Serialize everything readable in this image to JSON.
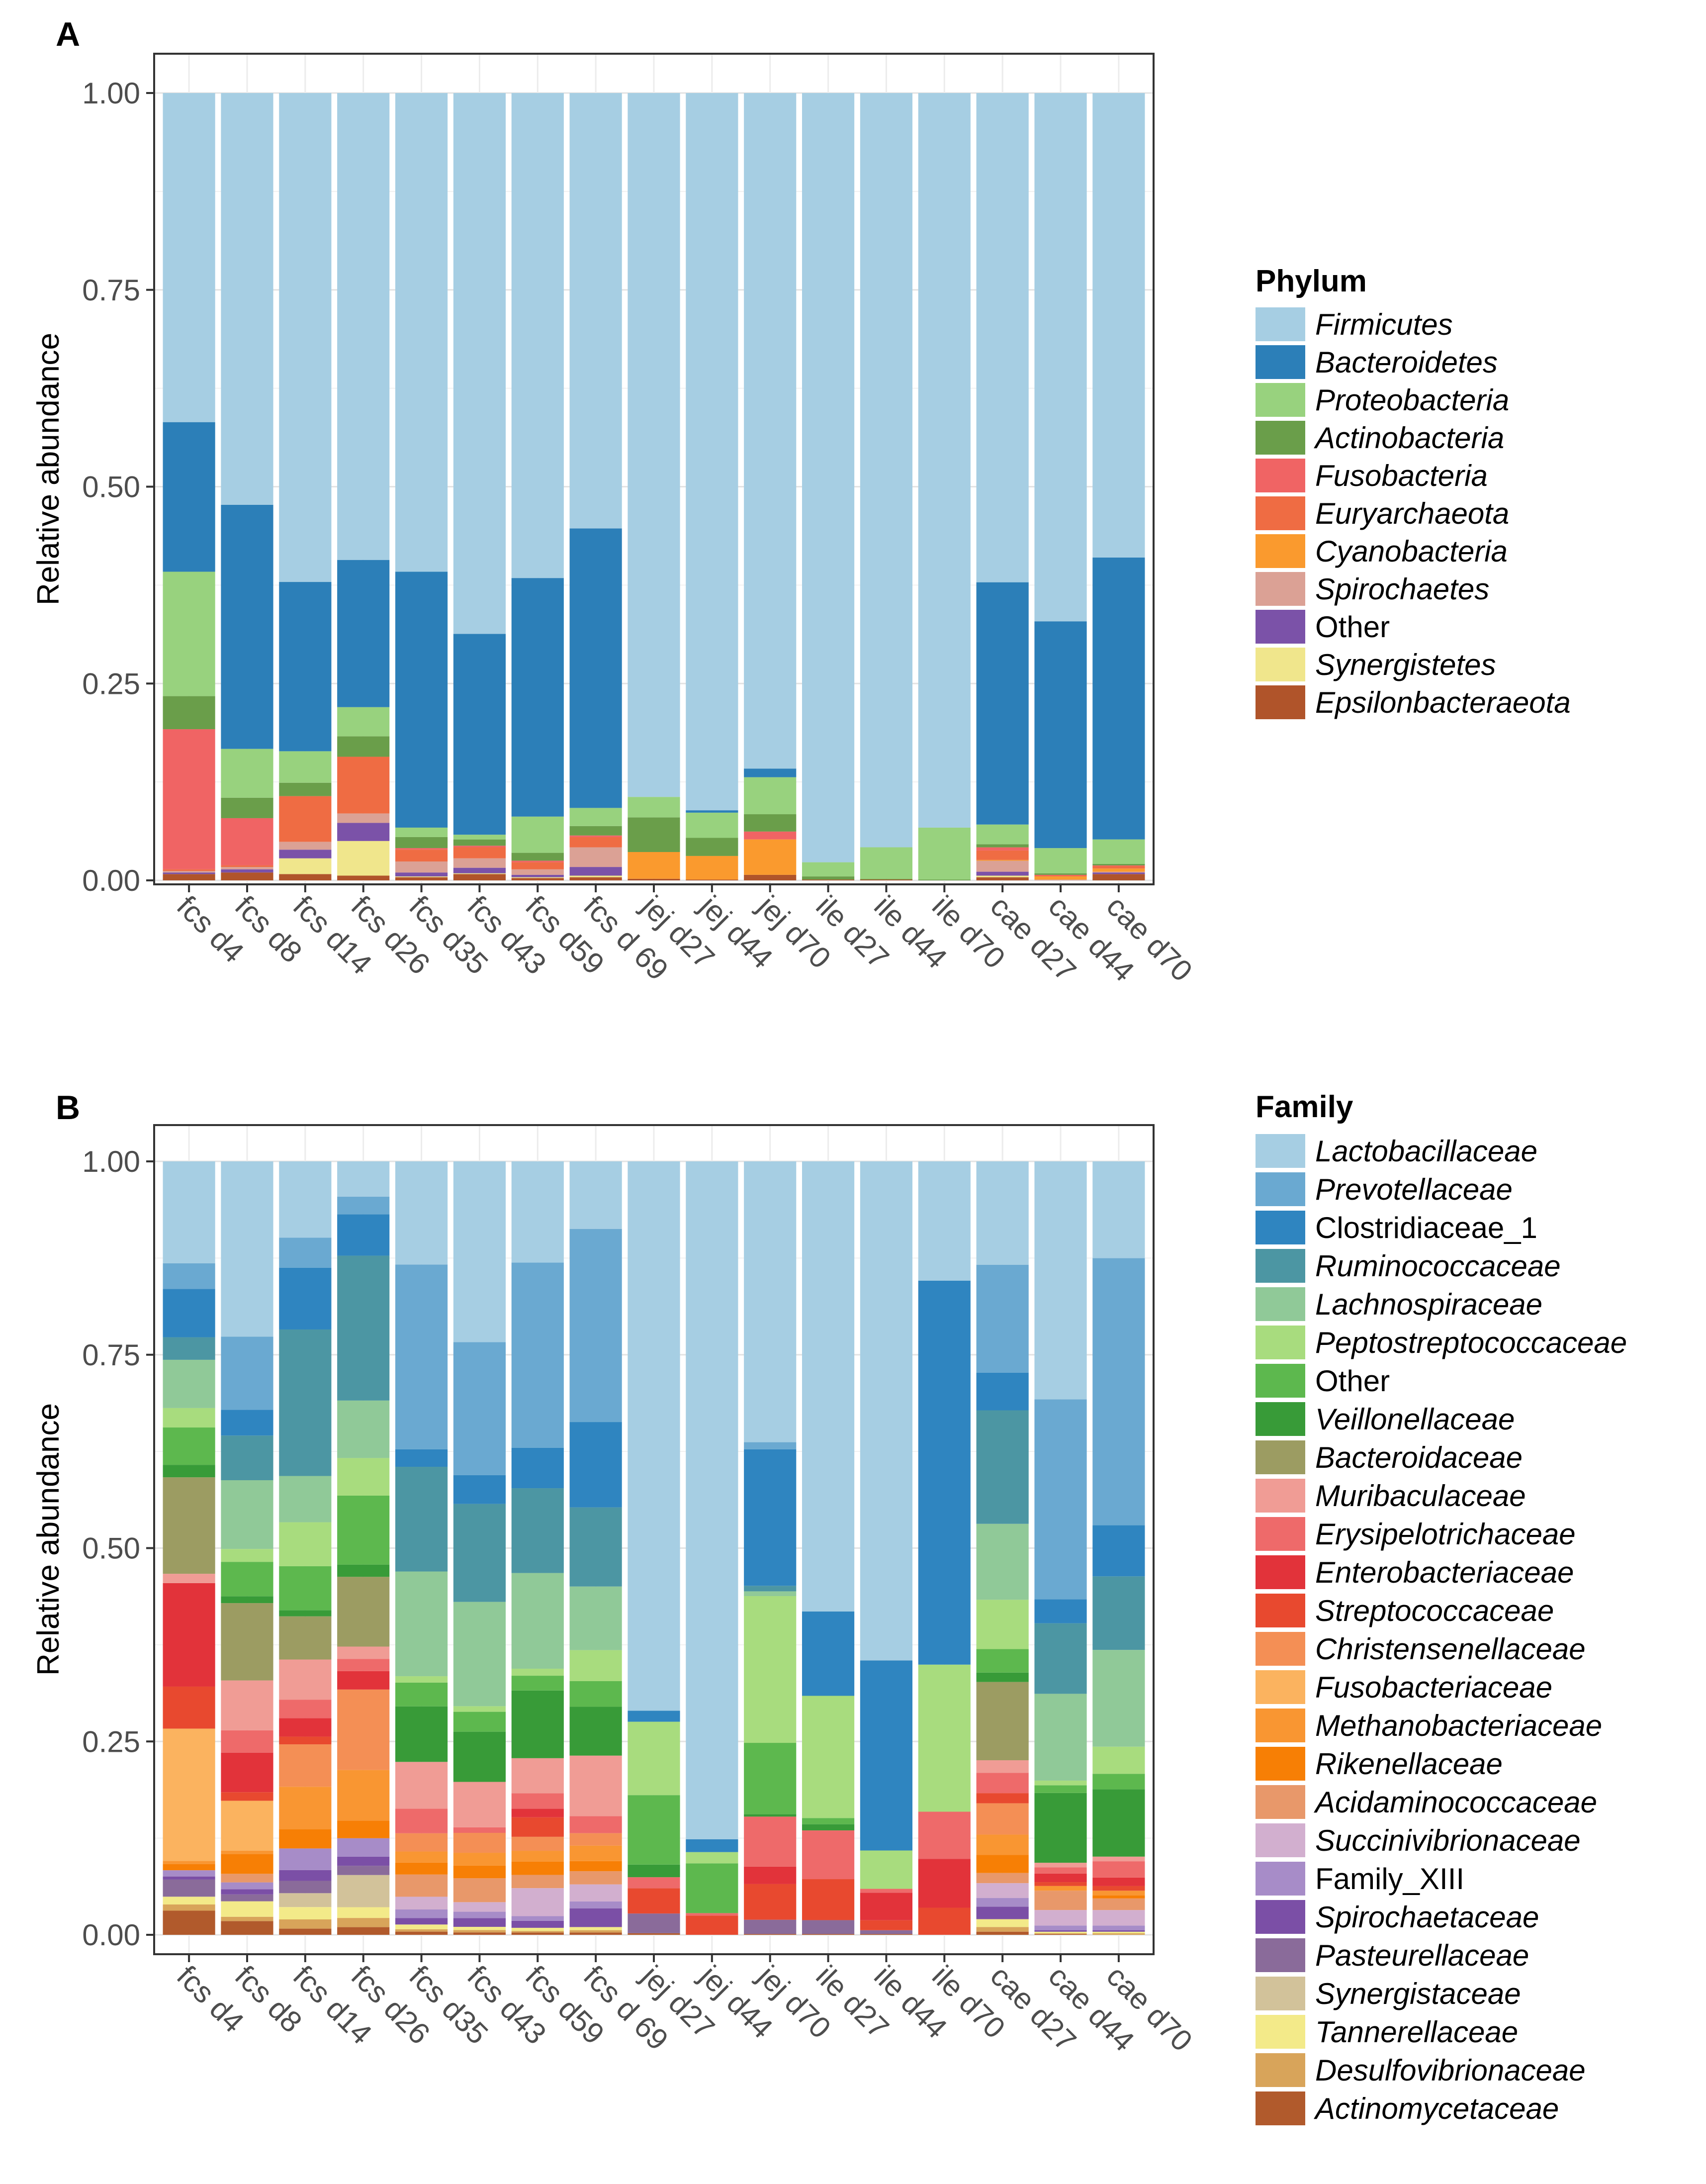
{
  "figure": {
    "panels": [
      {
        "label": "A",
        "legend_title": "Phylum"
      },
      {
        "label": "B",
        "legend_title": "Family"
      }
    ]
  },
  "chart_data": [
    {
      "type": "bar",
      "stacked": true,
      "panel": "A",
      "title": "",
      "xlabel": "",
      "ylabel": "Relative abundance",
      "ylim": [
        0,
        1
      ],
      "yticks": [
        "0.00",
        "0.25",
        "0.50",
        "0.75",
        "1.00"
      ],
      "legend_title": "Phylum",
      "legend_position": "right",
      "categories": [
        "fcs d4",
        "fcs d8",
        "fcs d14",
        "fcs d26",
        "fcs d35",
        "fcs d43",
        "fcs d59",
        "fcs d 69",
        "jej d27",
        "jej d44",
        "jej d70",
        "ile d27",
        "ile d44",
        "ile d70",
        "cae d27",
        "cae d44",
        "cae d70"
      ],
      "series": [
        {
          "name": "Firmicutes",
          "italic": true,
          "color": "#a6cee3",
          "values": [
            0.418,
            0.523,
            0.621,
            0.593,
            0.608,
            0.687,
            0.616,
            0.553,
            0.894,
            0.911,
            0.858,
            0.977,
            0.958,
            0.933,
            0.622,
            0.671,
            0.59
          ]
        },
        {
          "name": "Bacteroidetes",
          "italic": true,
          "color": "#2c7fb8",
          "values": [
            0.19,
            0.31,
            0.215,
            0.187,
            0.325,
            0.255,
            0.303,
            0.355,
            0.0,
            0.003,
            0.011,
            0.0,
            0.0,
            0.0,
            0.308,
            0.288,
            0.358
          ]
        },
        {
          "name": "Proteobacteria",
          "italic": true,
          "color": "#98d27e",
          "values": [
            0.158,
            0.062,
            0.04,
            0.037,
            0.012,
            0.006,
            0.046,
            0.023,
            0.026,
            0.032,
            0.047,
            0.018,
            0.04,
            0.066,
            0.025,
            0.032,
            0.031
          ]
        },
        {
          "name": "Actinobacteria",
          "italic": true,
          "color": "#6a9e4a",
          "values": [
            0.042,
            0.026,
            0.017,
            0.026,
            0.014,
            0.008,
            0.01,
            0.012,
            0.044,
            0.023,
            0.022,
            0.004,
            0.001,
            0.001,
            0.004,
            0.002,
            0.002
          ]
        },
        {
          "name": "Fusobacteria",
          "italic": true,
          "color": "#f06464",
          "values": [
            0.178,
            0.06,
            0.0,
            0.0,
            0.002,
            0.002,
            0.002,
            0.002,
            0.0,
            0.0,
            0.01,
            0.0,
            0.0,
            0.0,
            0.004,
            0.001,
            0.001
          ]
        },
        {
          "name": "Euryarchaeota",
          "italic": true,
          "color": "#ef6c43",
          "values": [
            0.002,
            0.002,
            0.058,
            0.072,
            0.015,
            0.014,
            0.009,
            0.013,
            0.0,
            0.0,
            0.0,
            0.0,
            0.0,
            0.0,
            0.012,
            0.001,
            0.003
          ]
        },
        {
          "name": "Cyanobacteria",
          "italic": true,
          "color": "#fa9a2e",
          "values": [
            0.0,
            0.0,
            0.0,
            0.0,
            0.0,
            0.0,
            0.0,
            0.0,
            0.034,
            0.03,
            0.045,
            0.0,
            0.0,
            0.0,
            0.001,
            0.004,
            0.004
          ]
        },
        {
          "name": "Spirochaetes",
          "italic": true,
          "color": "#dba195",
          "values": [
            0.002,
            0.003,
            0.01,
            0.012,
            0.014,
            0.012,
            0.007,
            0.025,
            0.0,
            0.0,
            0.0,
            0.0,
            0.0,
            0.0,
            0.014,
            0.001,
            0.001
          ]
        },
        {
          "name": "Other",
          "italic": false,
          "color": "#7b52a8",
          "values": [
            0.002,
            0.004,
            0.011,
            0.023,
            0.005,
            0.007,
            0.003,
            0.011,
            0.0,
            0.0,
            0.0,
            0.0,
            0.0,
            0.0,
            0.005,
            0.0,
            0.002
          ]
        },
        {
          "name": "Synergistetes",
          "italic": true,
          "color": "#f0e68c",
          "values": [
            0.0,
            0.0,
            0.02,
            0.044,
            0.001,
            0.001,
            0.001,
            0.002,
            0.0,
            0.0,
            0.0,
            0.0,
            0.0,
            0.0,
            0.002,
            0.0,
            0.0
          ]
        },
        {
          "name": "Epsilonbacteraeota",
          "italic": true,
          "color": "#b0542a",
          "values": [
            0.008,
            0.01,
            0.008,
            0.006,
            0.004,
            0.008,
            0.003,
            0.004,
            0.002,
            0.001,
            0.007,
            0.001,
            0.001,
            0.0,
            0.004,
            0.0,
            0.008
          ]
        }
      ]
    },
    {
      "type": "bar",
      "stacked": true,
      "panel": "B",
      "title": "",
      "xlabel": "",
      "ylabel": "Relative abundance",
      "ylim": [
        0,
        1
      ],
      "yticks": [
        "0.00",
        "0.25",
        "0.50",
        "0.75",
        "1.00"
      ],
      "legend_title": "Family",
      "legend_position": "right",
      "categories": [
        "fcs d4",
        "fcs d8",
        "fcs d14",
        "fcs d26",
        "fcs d35",
        "fcs d43",
        "fcs d59",
        "fcs d 69",
        "jej d27",
        "jej d44",
        "jej d70",
        "ile d27",
        "ile d44",
        "ile d70",
        "cae d27",
        "cae d44",
        "cae d70"
      ],
      "series": [
        {
          "name": "Lactobacillaceae",
          "italic": true,
          "color": "#a6cee3",
          "values": [
            0.131,
            0.204,
            0.099,
            0.046,
            0.13,
            0.227,
            0.13,
            0.087,
            0.696,
            0.844,
            0.354,
            0.582,
            0.651,
            0.154,
            0.132,
            0.307,
            0.125
          ]
        },
        {
          "name": "Prevotellaceae",
          "italic": true,
          "color": "#6aa9d1",
          "values": [
            0.033,
            0.085,
            0.039,
            0.023,
            0.233,
            0.167,
            0.238,
            0.249,
            0.0,
            0.0,
            0.009,
            0.0,
            0.0,
            0.0,
            0.138,
            0.258,
            0.345
          ]
        },
        {
          "name": "Clostridiaceae_1",
          "italic": false,
          "color": "#2f85c0",
          "values": [
            0.062,
            0.03,
            0.08,
            0.054,
            0.022,
            0.036,
            0.052,
            0.11,
            0.014,
            0.016,
            0.172,
            0.109,
            0.248,
            0.496,
            0.048,
            0.031,
            0.066
          ]
        },
        {
          "name": "Ruminococcaceae",
          "italic": true,
          "color": "#4c96a3",
          "values": [
            0.029,
            0.052,
            0.19,
            0.189,
            0.132,
            0.123,
            0.109,
            0.102,
            0.0,
            0.0,
            0.007,
            0.0,
            0.0,
            0.0,
            0.145,
            0.091,
            0.095
          ]
        },
        {
          "name": "Lachnospiraceae",
          "italic": true,
          "color": "#90c998",
          "values": [
            0.062,
            0.08,
            0.06,
            0.075,
            0.132,
            0.131,
            0.123,
            0.082,
            0.0,
            0.0,
            0.006,
            0.0,
            0.0,
            0.0,
            0.097,
            0.112,
            0.125
          ]
        },
        {
          "name": "Peptostreptococcaceae",
          "italic": true,
          "color": "#a8dc7e",
          "values": [
            0.025,
            0.015,
            0.057,
            0.049,
            0.008,
            0.007,
            0.009,
            0.04,
            0.093,
            0.014,
            0.185,
            0.158,
            0.05,
            0.19,
            0.063,
            0.006,
            0.035
          ]
        },
        {
          "name": "Other",
          "italic": false,
          "color": "#5db84e",
          "values": [
            0.048,
            0.04,
            0.057,
            0.09,
            0.03,
            0.025,
            0.019,
            0.033,
            0.088,
            0.062,
            0.09,
            0.008,
            0.0,
            0.0,
            0.03,
            0.01,
            0.02
          ]
        },
        {
          "name": "Veillonellaceae",
          "italic": true,
          "color": "#389b38",
          "values": [
            0.016,
            0.008,
            0.008,
            0.016,
            0.07,
            0.063,
            0.087,
            0.063,
            0.016,
            0.0,
            0.003,
            0.008,
            0.0,
            0.0,
            0.012,
            0.09,
            0.087
          ]
        },
        {
          "name": "Bacteroidaceae",
          "italic": true,
          "color": "#9c9c62",
          "values": [
            0.124,
            0.09,
            0.056,
            0.091,
            0.0,
            0.0,
            0.0,
            0.0,
            0.0,
            0.0,
            0.0,
            0.0,
            0.0,
            0.0,
            0.1,
            0.0,
            0.0
          ]
        },
        {
          "name": "Muribaculaceae",
          "italic": true,
          "color": "#f09c95",
          "values": [
            0.012,
            0.058,
            0.052,
            0.016,
            0.059,
            0.057,
            0.045,
            0.078,
            0.0,
            0.0,
            0.0,
            0.0,
            0.0,
            0.0,
            0.016,
            0.006,
            0.006
          ]
        },
        {
          "name": "Erysipelotrichaceae",
          "italic": true,
          "color": "#ee6a6a",
          "values": [
            0.0,
            0.026,
            0.024,
            0.016,
            0.031,
            0.007,
            0.02,
            0.022,
            0.014,
            0.003,
            0.063,
            0.063,
            0.005,
            0.061,
            0.026,
            0.008,
            0.021
          ]
        },
        {
          "name": "Enterobacteriaceae",
          "italic": true,
          "color": "#e2333a",
          "values": [
            0.133,
            0.046,
            0.024,
            0.024,
            0.0,
            0.0,
            0.011,
            0.0,
            0.0,
            0.0,
            0.022,
            0.0,
            0.036,
            0.063,
            0.0,
            0.011,
            0.011
          ]
        },
        {
          "name": "Streptococcaceae",
          "italic": true,
          "color": "#e8492f",
          "values": [
            0.054,
            0.01,
            0.01,
            0.0,
            0.0,
            0.0,
            0.025,
            0.0,
            0.032,
            0.024,
            0.045,
            0.053,
            0.013,
            0.035,
            0.013,
            0.005,
            0.006
          ]
        },
        {
          "name": "Christensenellaceae",
          "italic": true,
          "color": "#f48f55",
          "values": [
            0.0,
            0.0,
            0.055,
            0.105,
            0.023,
            0.025,
            0.018,
            0.016,
            0.0,
            0.0,
            0.0,
            0.0,
            0.0,
            0.0,
            0.04,
            0.0,
            0.0
          ]
        },
        {
          "name": "Fusobacteriaceae",
          "italic": true,
          "color": "#fbb35f",
          "values": [
            0.17,
            0.058,
            0.0,
            0.0,
            0.0,
            0.0,
            0.0,
            0.0,
            0.0,
            0.0,
            0.0,
            0.0,
            0.0,
            0.0,
            0.0,
            0.0,
            0.0
          ]
        },
        {
          "name": "Methanobacteriaceae",
          "italic": true,
          "color": "#f99632",
          "values": [
            0.004,
            0.004,
            0.055,
            0.066,
            0.014,
            0.016,
            0.014,
            0.02,
            0.0,
            0.0,
            0.0,
            0.0,
            0.0,
            0.0,
            0.026,
            0.006,
            0.006
          ]
        },
        {
          "name": "Rikenellaceae",
          "italic": true,
          "color": "#f77f05",
          "values": [
            0.008,
            0.023,
            0.025,
            0.023,
            0.015,
            0.016,
            0.017,
            0.013,
            0.0,
            0.0,
            0.0,
            0.0,
            0.0,
            0.0,
            0.023,
            0.0,
            0.004
          ]
        },
        {
          "name": "Acidaminococcaceae",
          "italic": true,
          "color": "#e8986a",
          "values": [
            0.0,
            0.01,
            0.0,
            0.0,
            0.028,
            0.03,
            0.017,
            0.017,
            0.0,
            0.0,
            0.0,
            0.0,
            0.0,
            0.0,
            0.013,
            0.025,
            0.015
          ]
        },
        {
          "name": "Succinivibrionaceae",
          "italic": true,
          "color": "#d2afcf",
          "values": [
            0.0,
            0.0,
            0.0,
            0.0,
            0.016,
            0.012,
            0.036,
            0.022,
            0.0,
            0.0,
            0.0,
            0.0,
            0.0,
            0.0,
            0.019,
            0.02,
            0.02
          ]
        },
        {
          "name": "Family_XIII",
          "italic": false,
          "color": "#a78cc8",
          "values": [
            0.008,
            0.008,
            0.028,
            0.024,
            0.011,
            0.008,
            0.006,
            0.009,
            0.0,
            0.0,
            0.0,
            0.0,
            0.0,
            0.0,
            0.011,
            0.006,
            0.006
          ]
        },
        {
          "name": "Spirochaetaceae",
          "italic": true,
          "color": "#7b4fa6",
          "values": [
            0.004,
            0.006,
            0.014,
            0.012,
            0.008,
            0.011,
            0.009,
            0.024,
            0.0,
            0.0,
            0.0,
            0.0,
            0.0,
            0.0,
            0.016,
            0.002,
            0.002
          ]
        },
        {
          "name": "Pasteurellaceae",
          "italic": true,
          "color": "#8a6b9a",
          "values": [
            0.022,
            0.008,
            0.016,
            0.012,
            0.0,
            0.0,
            0.0,
            0.0,
            0.025,
            0.0,
            0.018,
            0.018,
            0.005,
            0.0,
            0.0,
            0.0,
            0.0
          ]
        },
        {
          "name": "Synergistaceae",
          "italic": true,
          "color": "#d2c29a",
          "values": [
            0.0,
            0.0,
            0.018,
            0.042,
            0.0,
            0.0,
            0.0,
            0.0,
            0.0,
            0.0,
            0.0,
            0.0,
            0.0,
            0.0,
            0.0,
            0.0,
            0.0
          ]
        },
        {
          "name": "Tannerellaceae",
          "italic": true,
          "color": "#f3ea89",
          "values": [
            0.01,
            0.018,
            0.016,
            0.014,
            0.006,
            0.004,
            0.004,
            0.004,
            0.0,
            0.0,
            0.0,
            0.0,
            0.0,
            0.0,
            0.01,
            0.002,
            0.002
          ]
        },
        {
          "name": "Desulfovibrionaceae",
          "italic": true,
          "color": "#d8a45a",
          "values": [
            0.008,
            0.005,
            0.012,
            0.012,
            0.003,
            0.003,
            0.002,
            0.003,
            0.0,
            0.0,
            0.0,
            0.0,
            0.0,
            0.0,
            0.006,
            0.001,
            0.002
          ]
        },
        {
          "name": "Actinomycetaceae",
          "italic": true,
          "color": "#b15a2c",
          "values": [
            0.031,
            0.016,
            0.008,
            0.01,
            0.004,
            0.003,
            0.003,
            0.003,
            0.002,
            0.0,
            0.001,
            0.001,
            0.001,
            0.0,
            0.004,
            0.001,
            0.0
          ]
        }
      ]
    }
  ]
}
